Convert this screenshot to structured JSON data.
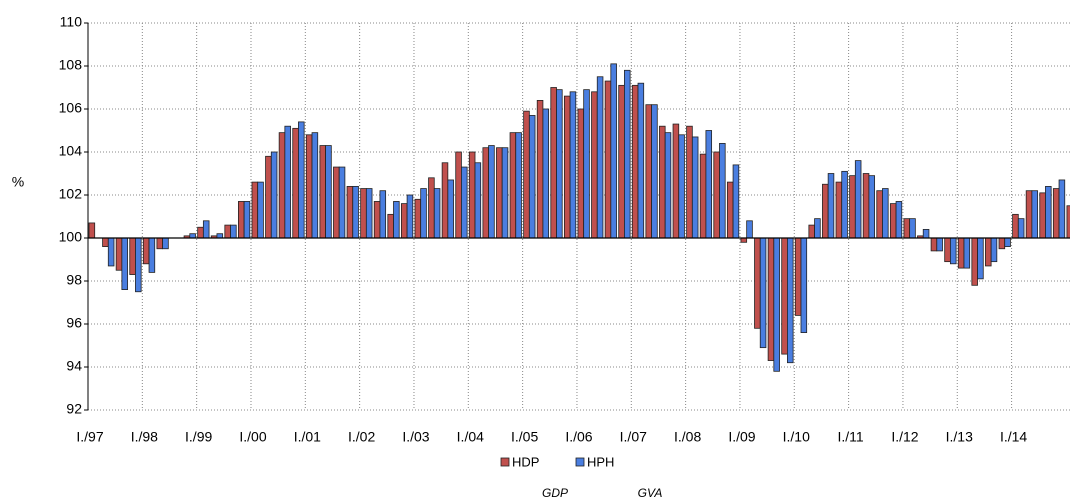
{
  "chart_data": {
    "type": "bar",
    "y_label": "%",
    "categories": [
      "I./97",
      null,
      null,
      null,
      "I./98",
      null,
      null,
      null,
      "I./99",
      null,
      null,
      null,
      "I./00",
      null,
      null,
      null,
      "I./01",
      null,
      null,
      null,
      "I./02",
      null,
      null,
      null,
      "I./03",
      null,
      null,
      null,
      "I./04",
      null,
      null,
      null,
      "I./05",
      null,
      null,
      null,
      "I./06",
      null,
      null,
      null,
      "I./07",
      null,
      null,
      null,
      "I./08",
      null,
      null,
      null,
      "I./09",
      null,
      null,
      null,
      "I./10",
      null,
      null,
      null,
      "I./11",
      null,
      null,
      null,
      "I./12",
      null,
      null,
      null,
      "I./13",
      null,
      null,
      null,
      "I./14",
      null,
      null,
      null,
      null
    ],
    "series": [
      {
        "name": "HDP",
        "color": "#c0504d",
        "values": [
          100.7,
          99.6,
          98.5,
          98.3,
          98.8,
          99.5,
          100.0,
          100.1,
          100.5,
          100.1,
          100.6,
          101.7,
          102.6,
          103.8,
          104.9,
          105.1,
          104.8,
          104.3,
          103.3,
          102.4,
          102.3,
          101.7,
          101.1,
          101.6,
          101.8,
          102.8,
          103.5,
          104.0,
          104.0,
          104.2,
          104.2,
          104.9,
          105.9,
          106.4,
          107.0,
          106.6,
          106.0,
          106.8,
          107.3,
          107.1,
          107.1,
          106.2,
          105.2,
          105.3,
          105.2,
          103.9,
          104.0,
          102.6,
          99.8,
          95.8,
          94.3,
          94.6,
          96.4,
          100.6,
          102.5,
          102.6,
          102.9,
          103.0,
          102.2,
          101.6,
          100.9,
          100.1,
          99.4,
          98.9,
          98.6,
          97.8,
          98.7,
          99.5,
          101.1,
          102.2,
          102.1,
          102.3,
          101.5
        ]
      },
      {
        "name": "HPH",
        "color": "#4a7ee0",
        "values": [
          100.0,
          98.7,
          97.6,
          97.5,
          98.4,
          99.5,
          100.0,
          100.2,
          100.8,
          100.2,
          100.6,
          101.7,
          102.6,
          104.0,
          105.2,
          105.4,
          104.9,
          104.3,
          103.3,
          102.4,
          102.3,
          102.2,
          101.7,
          102.0,
          102.3,
          102.3,
          102.7,
          103.3,
          103.5,
          104.3,
          104.2,
          104.9,
          105.7,
          106.0,
          106.9,
          106.8,
          106.9,
          107.5,
          108.1,
          107.8,
          107.2,
          106.2,
          104.9,
          104.8,
          104.7,
          105.0,
          104.4,
          103.4,
          100.8,
          94.9,
          93.8,
          94.2,
          95.6,
          100.9,
          103.0,
          103.1,
          103.6,
          102.9,
          102.3,
          101.7,
          100.9,
          100.4,
          99.4,
          98.8,
          98.6,
          98.1,
          98.9,
          99.6,
          100.9,
          102.2,
          102.4,
          102.7,
          null
        ]
      }
    ],
    "legend_notes": [
      "GDP",
      "GVA"
    ],
    "baseline": 100,
    "ylim": [
      92,
      110
    ],
    "yticks": [
      92,
      94,
      96,
      98,
      100,
      102,
      104,
      106,
      108,
      110
    ],
    "grid": true,
    "legend": "bottom"
  }
}
